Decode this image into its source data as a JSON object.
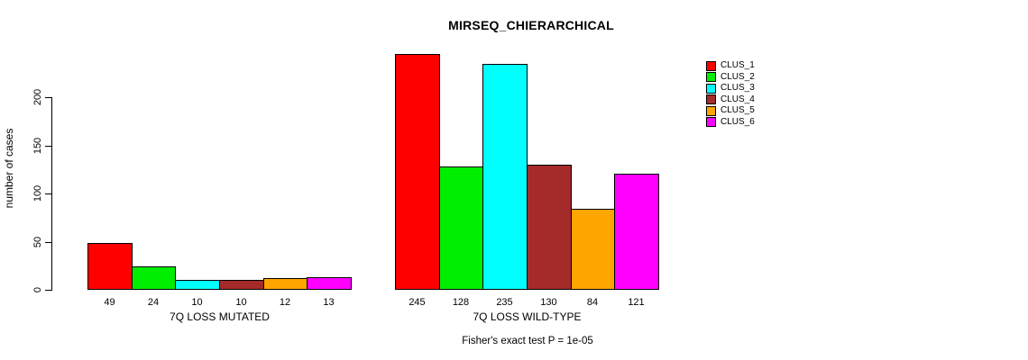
{
  "title": "MIRSEQ_CHIERARCHICAL",
  "footnote": "Fisher's exact test P = 1e-05",
  "chart_data": {
    "type": "bar",
    "title": "MIRSEQ_CHIERARCHICAL",
    "ylabel": "number of cases",
    "xlabel": "",
    "categories": [
      "7Q LOSS MUTATED",
      "7Q LOSS WILD-TYPE"
    ],
    "series": [
      {
        "name": "CLUS_1",
        "color": "#ff0000",
        "values": [
          49,
          245
        ]
      },
      {
        "name": "CLUS_2",
        "color": "#00ee00",
        "values": [
          24,
          128
        ]
      },
      {
        "name": "CLUS_3",
        "color": "#00ffff",
        "values": [
          10,
          235
        ]
      },
      {
        "name": "CLUS_4",
        "color": "#a52a2a",
        "values": [
          10,
          130
        ]
      },
      {
        "name": "CLUS_5",
        "color": "#ffa500",
        "values": [
          12,
          84
        ]
      },
      {
        "name": "CLUS_6",
        "color": "#ff00ff",
        "values": [
          13,
          121
        ]
      }
    ],
    "bar_value_labels": [
      [
        49,
        24,
        10,
        10,
        12,
        13
      ],
      [
        245,
        128,
        235,
        130,
        84,
        121
      ]
    ],
    "yticks": [
      0,
      50,
      100,
      150,
      200
    ],
    "ylim": [
      0,
      245
    ],
    "grid": false,
    "legend_position": "right",
    "annotation": "Fisher's exact test P = 1e-05"
  }
}
